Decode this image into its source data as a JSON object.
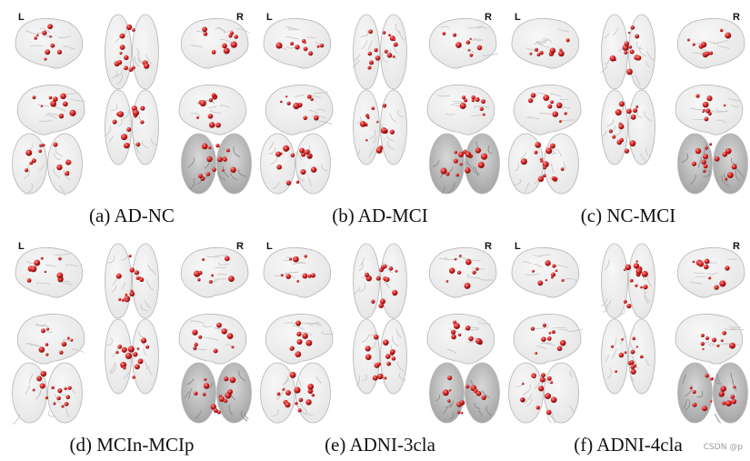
{
  "labels": {
    "left": "L",
    "right": "R"
  },
  "colors": {
    "brain_fill": "#e6e6e6",
    "brain_stroke": "#b5b5b5",
    "gyri": "#c8c8c8",
    "node": "#cc1f1f",
    "node_highlight": "#ff8a8a"
  },
  "panels": [
    {
      "caption": "(a) AD-NC",
      "seed": 11
    },
    {
      "caption": "(b) AD-MCI",
      "seed": 23
    },
    {
      "caption": "(c) NC-MCI",
      "seed": 37
    },
    {
      "caption": "(d) MCIn-MCIp",
      "seed": 41
    },
    {
      "caption": "(e) ADNI-3cla",
      "seed": 53
    },
    {
      "caption": "(f) ADNI-4cla",
      "seed": 67
    }
  ],
  "watermark": "CSDN @p"
}
